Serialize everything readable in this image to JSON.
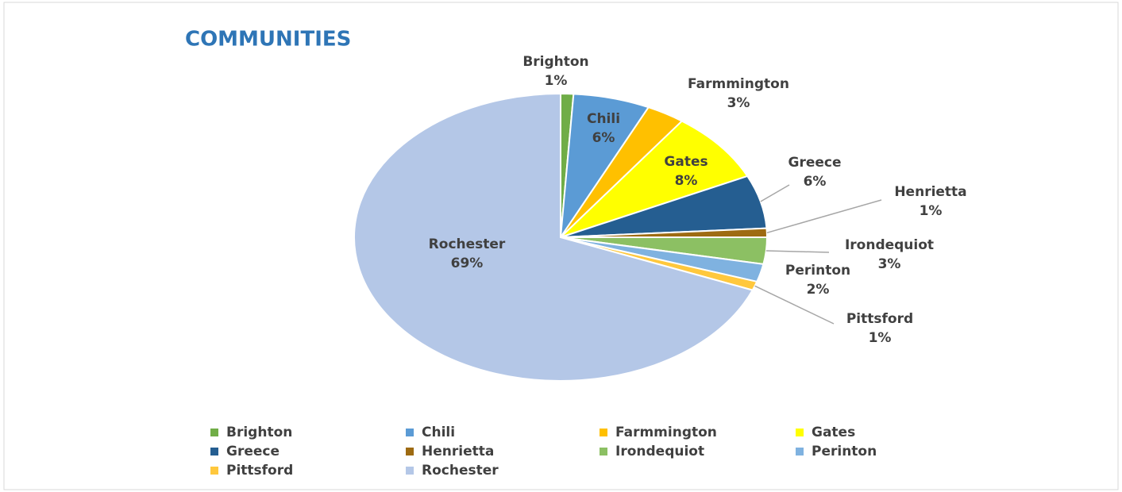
{
  "chart_data": {
    "type": "pie",
    "title": "COMMUNITIES",
    "categories": [
      "Brighton",
      "Chili",
      "Farmmington",
      "Gates",
      "Greece",
      "Henrietta",
      "Irondequiot",
      "Perinton",
      "Pittsford",
      "Rochester"
    ],
    "values": [
      1,
      6,
      3,
      8,
      6,
      1,
      3,
      2,
      1,
      69
    ],
    "value_labels": [
      "1%",
      "6%",
      "3%",
      "8%",
      "6%",
      "1%",
      "3%",
      "2%",
      "1%",
      "69%"
    ],
    "colors": [
      "#70ad47",
      "#5b9bd5",
      "#ffc000",
      "#ffff00",
      "#255e91",
      "#9e6b12",
      "#8cc063",
      "#7fb2e0",
      "#ffc83d",
      "#b4c7e7"
    ],
    "legend": "bottom"
  }
}
